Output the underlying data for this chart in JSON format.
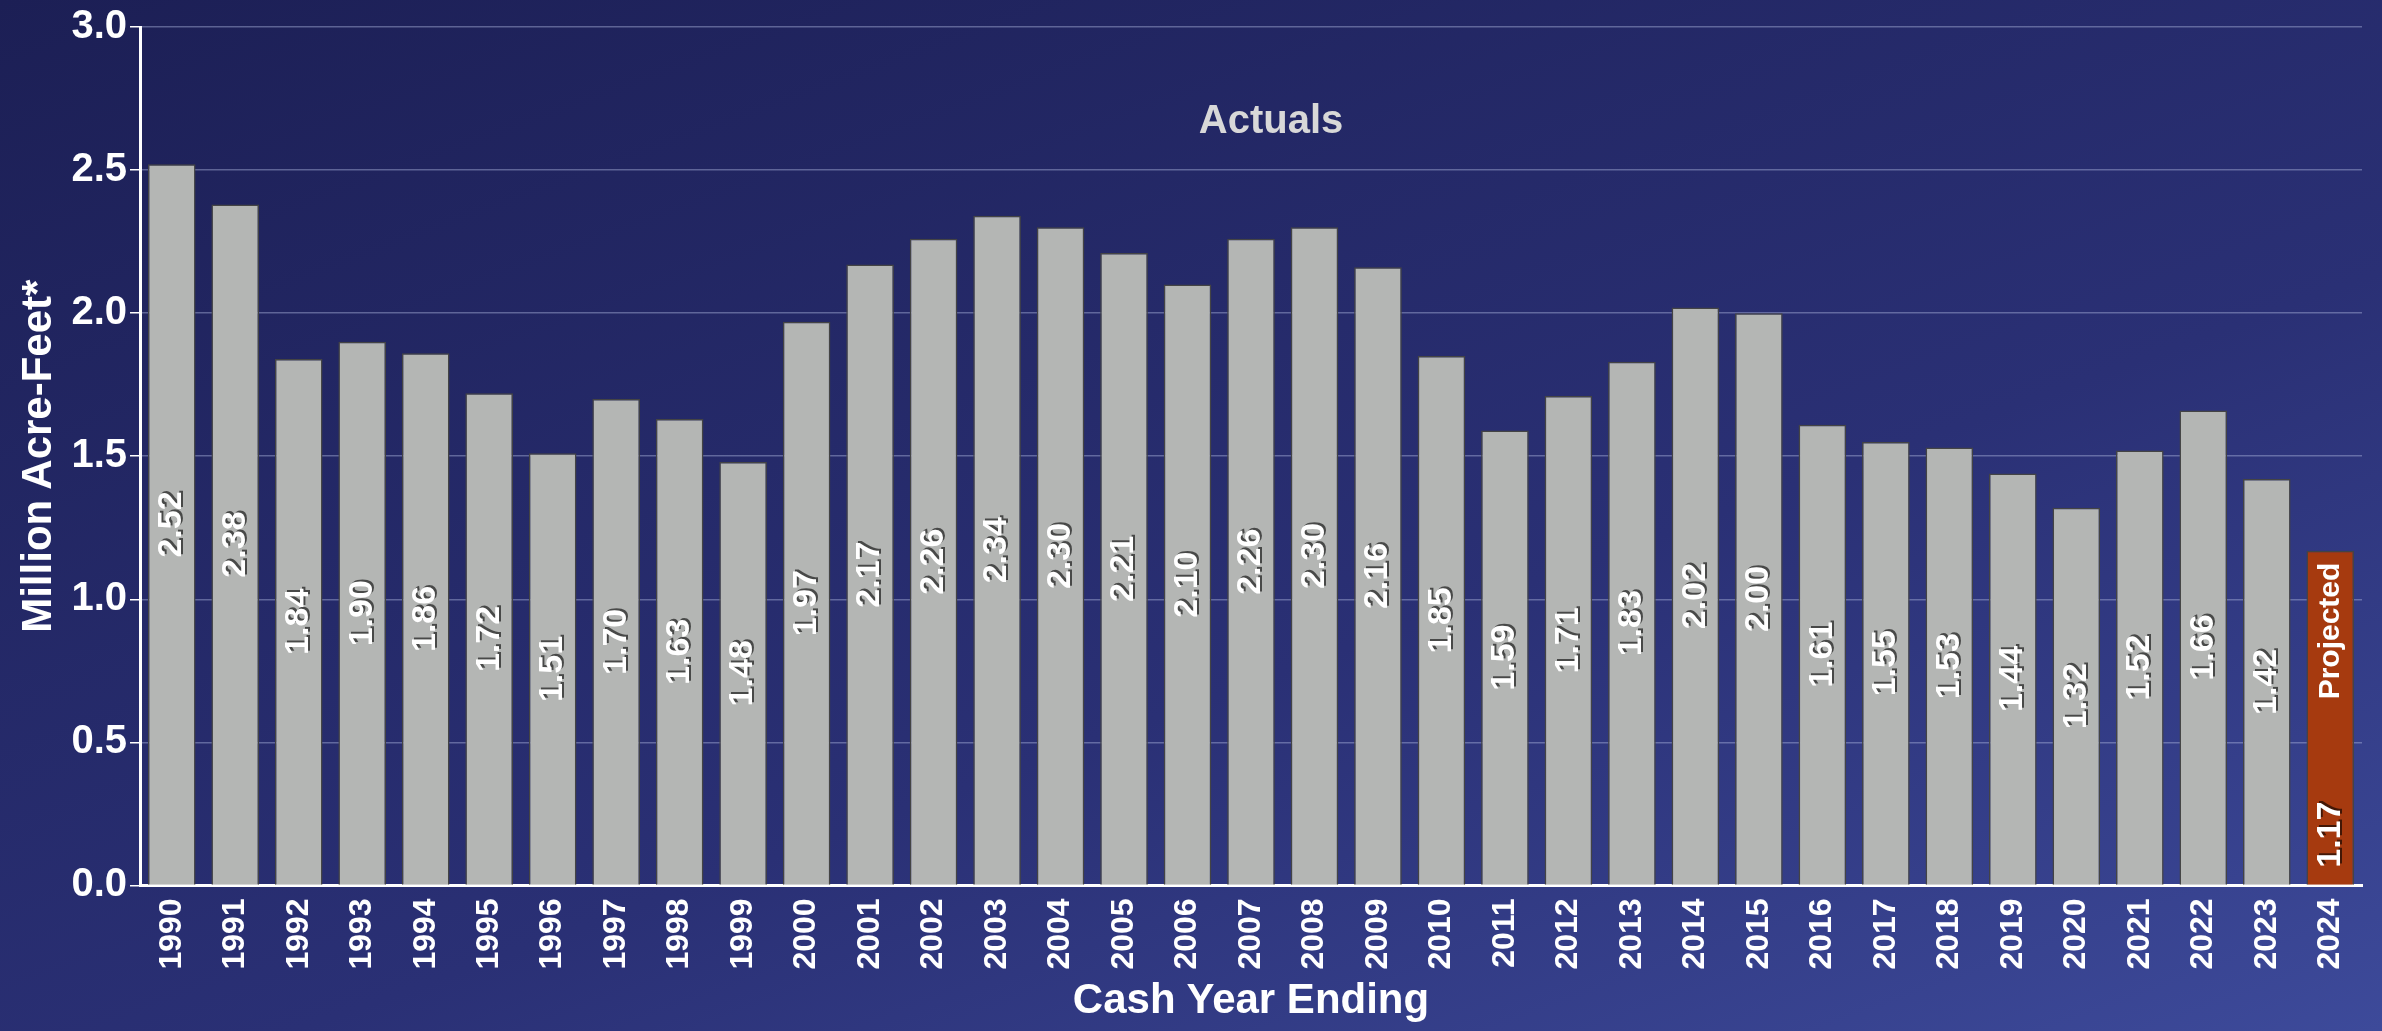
{
  "chart_data": {
    "type": "bar",
    "xlabel": "Cash Year Ending",
    "ylabel": "Million Acre-Feet*",
    "categories": [
      "1990",
      "1991",
      "1992",
      "1993",
      "1994",
      "1995",
      "1996",
      "1997",
      "1998",
      "1999",
      "2000",
      "2001",
      "2002",
      "2003",
      "2004",
      "2005",
      "2006",
      "2007",
      "2008",
      "2009",
      "2010",
      "2011",
      "2012",
      "2013",
      "2014",
      "2015",
      "2016",
      "2017",
      "2018",
      "2019",
      "2020",
      "2021",
      "2022",
      "2023",
      "2024"
    ],
    "values": [
      2.52,
      2.38,
      1.84,
      1.9,
      1.86,
      1.72,
      1.51,
      1.7,
      1.63,
      1.48,
      1.97,
      2.17,
      2.26,
      2.34,
      2.3,
      2.21,
      2.1,
      2.26,
      2.3,
      2.16,
      1.85,
      1.59,
      1.71,
      1.83,
      2.02,
      2.0,
      1.61,
      1.55,
      1.53,
      1.44,
      1.32,
      1.52,
      1.66,
      1.42,
      1.17
    ],
    "value_labels": [
      "2.52",
      "2.38",
      "1.84",
      "1.90",
      "1.86",
      "1.72",
      "1.51",
      "1.70",
      "1.63",
      "1.48",
      "1.97",
      "2.17",
      "2.26",
      "2.34",
      "2.30",
      "2.21",
      "2.10",
      "2.26",
      "2.30",
      "2.16",
      "1.85",
      "1.59",
      "1.71",
      "1.83",
      "2.02",
      "2.00",
      "1.61",
      "1.55",
      "1.53",
      "1.44",
      "1.32",
      "1.52",
      "1.66",
      "1.42",
      "1.17"
    ],
    "colors": [
      "#b4b6b4",
      "#b4b6b4",
      "#b4b6b4",
      "#b4b6b4",
      "#b4b6b4",
      "#b4b6b4",
      "#b4b6b4",
      "#b4b6b4",
      "#b4b6b4",
      "#b4b6b4",
      "#b4b6b4",
      "#b4b6b4",
      "#b4b6b4",
      "#b4b6b4",
      "#b4b6b4",
      "#b4b6b4",
      "#b4b6b4",
      "#b4b6b4",
      "#b4b6b4",
      "#b4b6b4",
      "#b4b6b4",
      "#b4b6b4",
      "#b4b6b4",
      "#b4b6b4",
      "#b4b6b4",
      "#b4b6b4",
      "#b4b6b4",
      "#b4b6b4",
      "#b4b6b4",
      "#b4b6b4",
      "#b4b6b4",
      "#b4b6b4",
      "#b4b6b4",
      "#b4b6b4",
      "#a63a0f"
    ],
    "ylim": [
      0,
      3.0
    ],
    "yticks": [
      {
        "value": 0,
        "label": "0.0"
      },
      {
        "value": 0.5,
        "label": "0.5"
      },
      {
        "value": 1,
        "label": "1.0"
      },
      {
        "value": 1.5,
        "label": "1.5"
      },
      {
        "value": 2,
        "label": "2.0"
      },
      {
        "value": 2.5,
        "label": "2.5"
      },
      {
        "value": 3,
        "label": "3.0"
      }
    ],
    "grid": "y",
    "legend": false,
    "annotations": [
      "Actuals",
      "Projected"
    ]
  }
}
